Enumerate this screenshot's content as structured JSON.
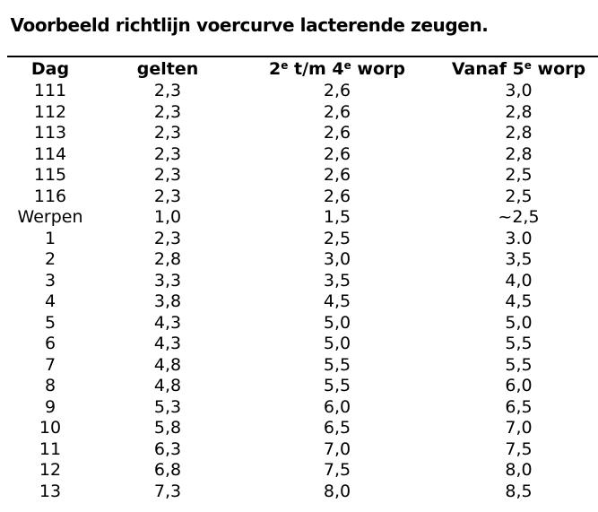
{
  "page": {
    "title": "Voorbeeld richtlijn voercurve lacterende zeugen.",
    "background_color": "#ffffff",
    "text_color": "#000000",
    "rule_color": "#000000"
  },
  "table": {
    "headers": [
      {
        "parts": [
          {
            "t": "Dag",
            "sup": false
          }
        ]
      },
      {
        "parts": [
          {
            "t": "gelten",
            "sup": false
          }
        ]
      },
      {
        "parts": [
          {
            "t": "2",
            "sup": false
          },
          {
            "t": "e",
            "sup": true
          },
          {
            "t": " t/m 4",
            "sup": false
          },
          {
            "t": "e",
            "sup": true
          },
          {
            "t": " worp",
            "sup": false
          }
        ]
      },
      {
        "parts": [
          {
            "t": "Vanaf 5",
            "sup": false
          },
          {
            "t": "e",
            "sup": true
          },
          {
            "t": " worp",
            "sup": false
          }
        ]
      }
    ]
  },
  "chart_data": {
    "type": "table",
    "title": "Voorbeeld richtlijn voercurve lacterende zeugen.",
    "columns": [
      "Dag",
      "gelten",
      "2e t/m 4e worp",
      "Vanaf 5e worp"
    ],
    "rows": [
      [
        "111",
        "2,3",
        "2,6",
        "3,0"
      ],
      [
        "112",
        "2,3",
        "2,6",
        "2,8"
      ],
      [
        "113",
        "2,3",
        "2,6",
        "2,8"
      ],
      [
        "114",
        "2,3",
        "2,6",
        "2,8"
      ],
      [
        "115",
        "2,3",
        "2,6",
        "2,5"
      ],
      [
        "116",
        "2,3",
        "2,6",
        "2,5"
      ],
      [
        "Werpen",
        "1,0",
        "1,5",
        "~2,5"
      ],
      [
        "1",
        "2,3",
        "2,5",
        "3.0"
      ],
      [
        "2",
        "2,8",
        "3,0",
        "3,5"
      ],
      [
        "3",
        "3,3",
        "3,5",
        "4,0"
      ],
      [
        "4",
        "3,8",
        "4,5",
        "4,5"
      ],
      [
        "5",
        "4,3",
        "5,0",
        "5,0"
      ],
      [
        "6",
        "4,3",
        "5,0",
        "5,5"
      ],
      [
        "7",
        "4,8",
        "5,5",
        "5,5"
      ],
      [
        "8",
        "4,8",
        "5,5",
        "6,0"
      ],
      [
        "9",
        "5,3",
        "6,0",
        "6,5"
      ],
      [
        "10",
        "5,8",
        "6,5",
        "7,0"
      ],
      [
        "11",
        "6,3",
        "7,0",
        "7,5"
      ],
      [
        "12",
        "6,8",
        "7,5",
        "8,0"
      ],
      [
        "13",
        "7,3",
        "8,0",
        "8,5"
      ]
    ]
  }
}
